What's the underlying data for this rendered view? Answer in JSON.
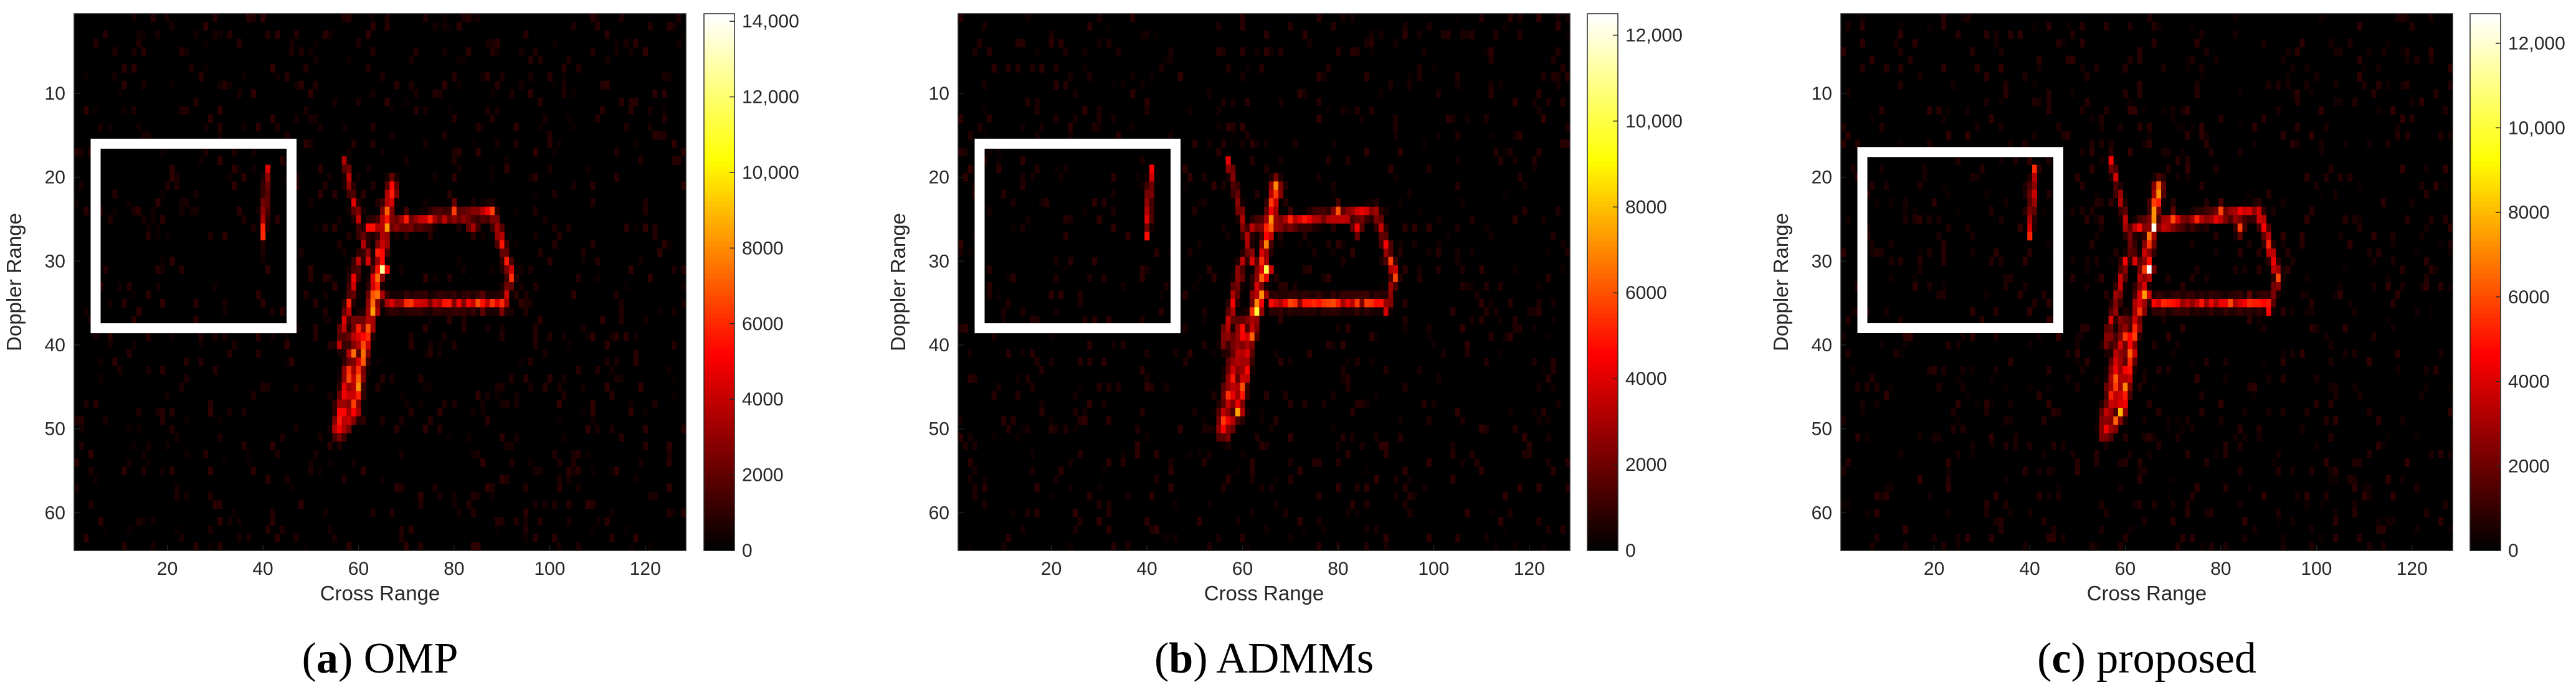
{
  "figure": {
    "colormap": "hot",
    "background_color": "#000000",
    "highlight_box_color": "#ffffff"
  },
  "chart_data": [
    {
      "type": "heatmap",
      "panel_letter": "a",
      "method": "OMP",
      "xlabel": "Cross Range",
      "ylabel": "Doppler Range",
      "xlim": [
        1,
        128
      ],
      "ylim": [
        1,
        64
      ],
      "y_inverted": true,
      "xticks": [
        20,
        40,
        60,
        80,
        100,
        120
      ],
      "yticks": [
        10,
        20,
        30,
        40,
        50,
        60
      ],
      "colorbar": {
        "min": 0,
        "max": 14200,
        "ticks": [
          0,
          2000,
          4000,
          6000,
          8000,
          10000,
          12000,
          14000
        ],
        "tick_labels": [
          "0",
          "2000",
          "4000",
          "6000",
          "8000",
          "10,000",
          "12,000",
          "14,000"
        ]
      },
      "highlight_box": {
        "x": [
          5,
          46
        ],
        "y": [
          16,
          38
        ]
      },
      "target_peak": 14000
    },
    {
      "type": "heatmap",
      "panel_letter": "b",
      "method": "ADMMs",
      "xlabel": "Cross Range",
      "ylabel": "Doppler Range",
      "xlim": [
        1,
        128
      ],
      "ylim": [
        1,
        64
      ],
      "y_inverted": true,
      "xticks": [
        20,
        40,
        60,
        80,
        100,
        120
      ],
      "yticks": [
        10,
        20,
        30,
        40,
        50,
        60
      ],
      "colorbar": {
        "min": 0,
        "max": 12500,
        "ticks": [
          0,
          2000,
          4000,
          6000,
          8000,
          10000,
          12000
        ],
        "tick_labels": [
          "0",
          "2000",
          "4000",
          "6000",
          "8000",
          "10,000",
          "12,000"
        ]
      },
      "highlight_box": {
        "x": [
          5,
          46
        ],
        "y": [
          16,
          38
        ]
      },
      "target_peak": 12300
    },
    {
      "type": "heatmap",
      "panel_letter": "c",
      "method": "proposed",
      "xlabel": "Cross Range",
      "ylabel": "Doppler Range",
      "xlim": [
        1,
        128
      ],
      "ylim": [
        1,
        64
      ],
      "y_inverted": true,
      "xticks": [
        20,
        40,
        60,
        80,
        100,
        120
      ],
      "yticks": [
        10,
        20,
        30,
        40,
        50,
        60
      ],
      "colorbar": {
        "min": 0,
        "max": 12700,
        "ticks": [
          0,
          2000,
          4000,
          6000,
          8000,
          10000,
          12000
        ],
        "tick_labels": [
          "0",
          "2000",
          "4000",
          "6000",
          "8000",
          "10,000",
          "12,000"
        ]
      },
      "highlight_box": {
        "x": [
          5,
          46
        ],
        "y": [
          17,
          38
        ]
      },
      "target_peak": 12500
    }
  ]
}
